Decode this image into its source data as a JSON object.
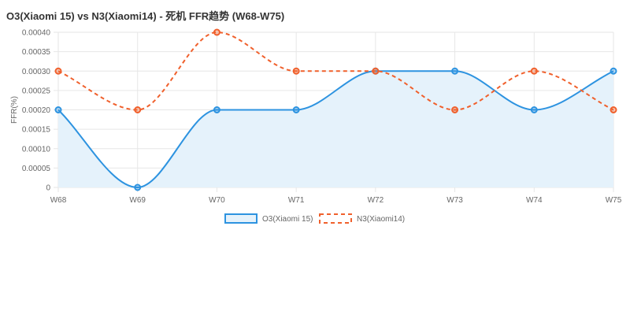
{
  "chart_data": {
    "type": "line",
    "title": "O3(Xiaomi 15) vs N3(Xiaomi14) - 死机 FFR趋势 (W68-W75)",
    "ylabel": "FFR(%)",
    "xlabel": "",
    "categories": [
      "W68",
      "W69",
      "W70",
      "W71",
      "W72",
      "W73",
      "W74",
      "W75"
    ],
    "ylim": [
      0,
      0.0004
    ],
    "yticks": [
      "0",
      "0.00005",
      "0.00010",
      "0.00015",
      "0.00020",
      "0.00025",
      "0.00030",
      "0.00035",
      "0.00040"
    ],
    "grid": true,
    "legend_position": "bottom",
    "series": [
      {
        "name": "O3(Xiaomi 15)",
        "values": [
          0.0002,
          0.0,
          0.0002,
          0.0002,
          0.0003,
          0.0003,
          0.0002,
          0.0003
        ],
        "color": "#2d93e0",
        "fill": "#e5f2fb",
        "dash": "solid"
      },
      {
        "name": "N3(Xiaomi14)",
        "values": [
          0.0003,
          0.0002,
          0.0004,
          0.0003,
          0.0003,
          0.0002,
          0.0003,
          0.0002
        ],
        "color": "#f0602c",
        "dash": "dashed"
      }
    ]
  }
}
